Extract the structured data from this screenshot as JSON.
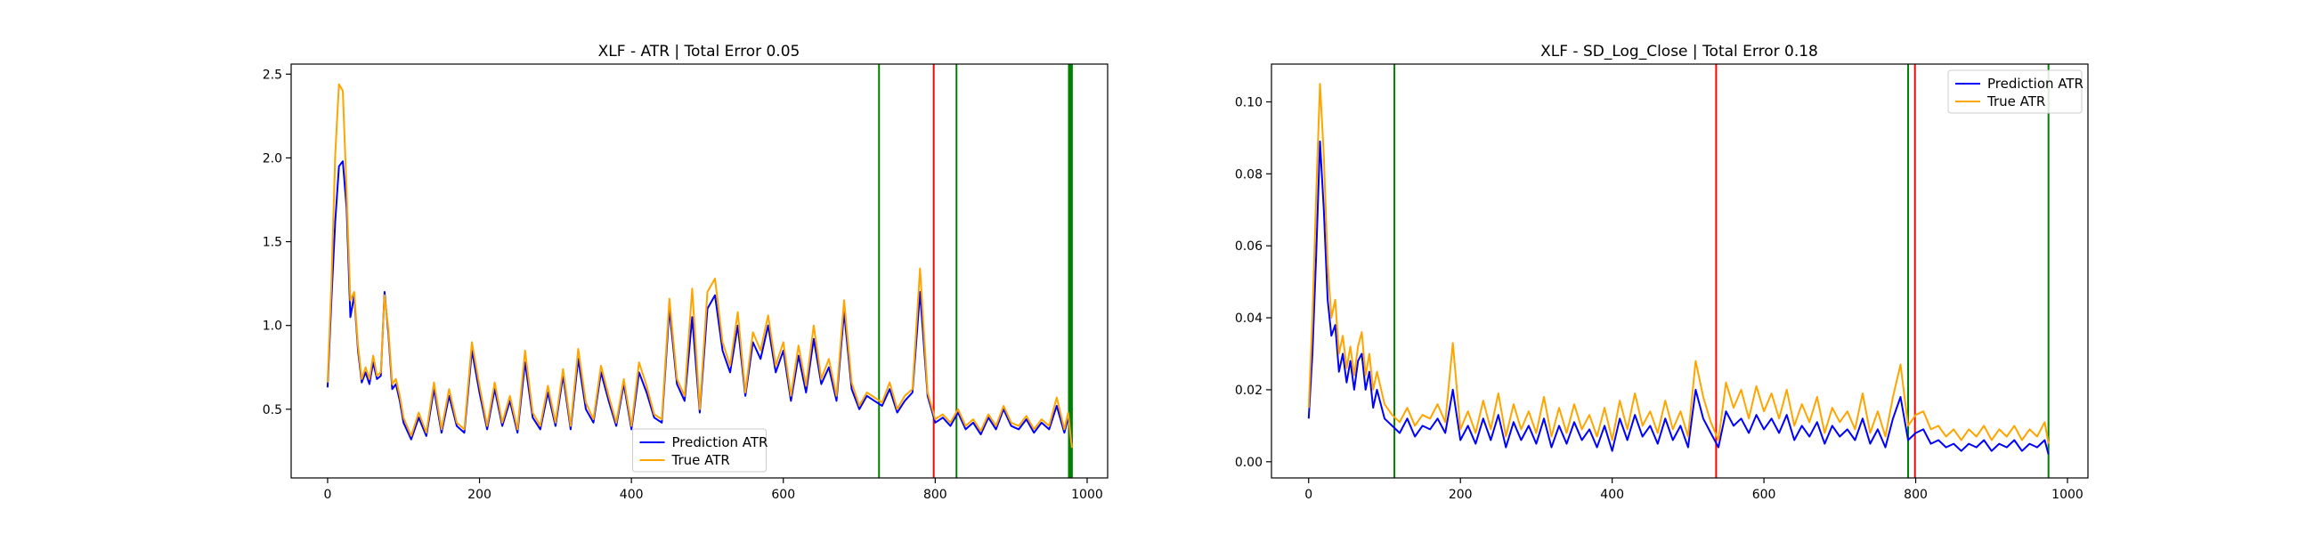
{
  "chart_data": [
    {
      "type": "line",
      "title": "XLF - ATR | Total Error 0.05",
      "xlabel": "",
      "ylabel": "",
      "xlim": [
        -48,
        1027
      ],
      "ylim": [
        0.09,
        2.56
      ],
      "xticks": [
        0,
        200,
        400,
        600,
        800,
        1000
      ],
      "xtick_labels": [
        "0",
        "200",
        "400",
        "600",
        "800",
        "1000"
      ],
      "yticks": [
        0.5,
        1.0,
        1.5,
        2.0,
        2.5
      ],
      "ytick_labels": [
        "0.5",
        "1.0",
        "1.5",
        "2.0",
        "2.5"
      ],
      "grid": false,
      "legend_position": "bottom-center",
      "vlines": [
        {
          "x": 726,
          "color": "#008000"
        },
        {
          "x": 798,
          "color": "#ff0000"
        },
        {
          "x": 828,
          "color": "#008000"
        },
        {
          "x": 976,
          "color": "#008000"
        },
        {
          "x": 978,
          "color": "#008000"
        },
        {
          "x": 980,
          "color": "#008000"
        }
      ],
      "series": [
        {
          "name": "Prediction ATR",
          "color": "#0000ff",
          "x": [
            0,
            5,
            10,
            15,
            20,
            25,
            30,
            35,
            40,
            45,
            50,
            55,
            60,
            65,
            70,
            75,
            80,
            85,
            90,
            95,
            100,
            110,
            120,
            130,
            140,
            150,
            160,
            170,
            180,
            190,
            200,
            210,
            220,
            230,
            240,
            250,
            260,
            270,
            280,
            290,
            300,
            310,
            320,
            330,
            340,
            350,
            360,
            370,
            380,
            390,
            400,
            410,
            420,
            430,
            440,
            450,
            460,
            470,
            480,
            490,
            500,
            510,
            520,
            530,
            540,
            550,
            560,
            570,
            580,
            590,
            600,
            610,
            620,
            630,
            640,
            650,
            660,
            670,
            680,
            690,
            700,
            710,
            720,
            730,
            740,
            750,
            760,
            770,
            780,
            790,
            800,
            810,
            820,
            830,
            840,
            850,
            860,
            870,
            880,
            890,
            900,
            910,
            920,
            930,
            940,
            950,
            960,
            970,
            975,
            980
          ],
          "y": [
            0.63,
            1.15,
            1.62,
            1.95,
            1.98,
            1.7,
            1.05,
            1.18,
            0.85,
            0.66,
            0.72,
            0.65,
            0.78,
            0.68,
            0.7,
            1.2,
            0.95,
            0.62,
            0.65,
            0.55,
            0.42,
            0.32,
            0.45,
            0.34,
            0.62,
            0.36,
            0.58,
            0.4,
            0.36,
            0.85,
            0.6,
            0.38,
            0.62,
            0.4,
            0.55,
            0.36,
            0.78,
            0.45,
            0.38,
            0.6,
            0.4,
            0.7,
            0.38,
            0.8,
            0.5,
            0.42,
            0.72,
            0.55,
            0.4,
            0.65,
            0.38,
            0.72,
            0.6,
            0.45,
            0.42,
            1.1,
            0.65,
            0.55,
            1.05,
            0.48,
            1.1,
            1.18,
            0.85,
            0.72,
            1.0,
            0.58,
            0.9,
            0.8,
            1.0,
            0.72,
            0.85,
            0.55,
            0.82,
            0.6,
            0.92,
            0.65,
            0.75,
            0.55,
            1.08,
            0.62,
            0.5,
            0.58,
            0.55,
            0.52,
            0.62,
            0.48,
            0.55,
            0.6,
            1.2,
            0.58,
            0.42,
            0.45,
            0.4,
            0.48,
            0.38,
            0.42,
            0.35,
            0.45,
            0.38,
            0.5,
            0.4,
            0.38,
            0.44,
            0.36,
            0.42,
            0.38,
            0.52,
            0.36,
            0.45,
            0.3
          ]
        },
        {
          "name": "True ATR",
          "color": "#ffa500",
          "x": [
            0,
            5,
            10,
            15,
            20,
            25,
            30,
            35,
            40,
            45,
            50,
            55,
            60,
            65,
            70,
            75,
            80,
            85,
            90,
            95,
            100,
            110,
            120,
            130,
            140,
            150,
            160,
            170,
            180,
            190,
            200,
            210,
            220,
            230,
            240,
            250,
            260,
            270,
            280,
            290,
            300,
            310,
            320,
            330,
            340,
            350,
            360,
            370,
            380,
            390,
            400,
            410,
            420,
            430,
            440,
            450,
            460,
            470,
            480,
            490,
            500,
            510,
            520,
            530,
            540,
            550,
            560,
            570,
            580,
            590,
            600,
            610,
            620,
            630,
            640,
            650,
            660,
            670,
            680,
            690,
            700,
            710,
            720,
            730,
            740,
            750,
            760,
            770,
            780,
            790,
            800,
            810,
            820,
            830,
            840,
            850,
            860,
            870,
            880,
            890,
            900,
            910,
            920,
            930,
            940,
            950,
            960,
            970,
            975,
            980
          ],
          "y": [
            0.66,
            1.25,
            2.02,
            2.44,
            2.4,
            1.8,
            1.15,
            1.2,
            0.88,
            0.68,
            0.75,
            0.68,
            0.82,
            0.7,
            0.72,
            1.18,
            0.98,
            0.65,
            0.68,
            0.58,
            0.45,
            0.34,
            0.48,
            0.36,
            0.66,
            0.38,
            0.62,
            0.42,
            0.38,
            0.9,
            0.64,
            0.4,
            0.66,
            0.42,
            0.58,
            0.38,
            0.85,
            0.48,
            0.4,
            0.64,
            0.42,
            0.74,
            0.4,
            0.86,
            0.54,
            0.44,
            0.76,
            0.58,
            0.42,
            0.68,
            0.4,
            0.78,
            0.64,
            0.47,
            0.44,
            1.16,
            0.68,
            0.58,
            1.22,
            0.5,
            1.2,
            1.28,
            0.9,
            0.76,
            1.08,
            0.6,
            0.96,
            0.85,
            1.06,
            0.76,
            0.9,
            0.58,
            0.88,
            0.64,
            1.0,
            0.68,
            0.8,
            0.58,
            1.15,
            0.66,
            0.52,
            0.6,
            0.57,
            0.54,
            0.66,
            0.5,
            0.58,
            0.62,
            1.34,
            0.6,
            0.44,
            0.47,
            0.42,
            0.5,
            0.4,
            0.44,
            0.37,
            0.47,
            0.4,
            0.52,
            0.42,
            0.4,
            0.46,
            0.38,
            0.44,
            0.4,
            0.57,
            0.38,
            0.48,
            0.27
          ]
        }
      ]
    },
    {
      "type": "line",
      "title": "XLF - SD_Log_Close | Total Error 0.18",
      "xlabel": "",
      "ylabel": "",
      "xlim": [
        -49,
        1027
      ],
      "ylim": [
        -0.0045,
        0.1105
      ],
      "xticks": [
        0,
        200,
        400,
        600,
        800,
        1000
      ],
      "xtick_labels": [
        "0",
        "200",
        "400",
        "600",
        "800",
        "1000"
      ],
      "yticks": [
        0.0,
        0.02,
        0.04,
        0.06,
        0.08,
        0.1
      ],
      "ytick_labels": [
        "0.00",
        "0.02",
        "0.04",
        "0.06",
        "0.08",
        "0.10"
      ],
      "grid": false,
      "legend_position": "top-right",
      "vlines": [
        {
          "x": 113,
          "color": "#008000"
        },
        {
          "x": 537,
          "color": "#ff0000"
        },
        {
          "x": 790,
          "color": "#008000"
        },
        {
          "x": 799,
          "color": "#ff0000"
        },
        {
          "x": 975,
          "color": "#008000"
        }
      ],
      "series": [
        {
          "name": "Prediction ATR",
          "color": "#0000ff",
          "x": [
            0,
            5,
            10,
            15,
            20,
            25,
            30,
            35,
            40,
            45,
            50,
            55,
            60,
            65,
            70,
            75,
            80,
            85,
            90,
            100,
            110,
            120,
            130,
            140,
            150,
            160,
            170,
            180,
            190,
            200,
            210,
            220,
            230,
            240,
            250,
            260,
            270,
            280,
            290,
            300,
            310,
            320,
            330,
            340,
            350,
            360,
            370,
            380,
            390,
            400,
            410,
            420,
            430,
            440,
            450,
            460,
            470,
            480,
            490,
            500,
            510,
            520,
            530,
            540,
            550,
            560,
            570,
            580,
            590,
            600,
            610,
            620,
            630,
            640,
            650,
            660,
            670,
            680,
            690,
            700,
            710,
            720,
            730,
            740,
            750,
            760,
            770,
            780,
            790,
            800,
            810,
            820,
            830,
            840,
            850,
            860,
            870,
            880,
            890,
            900,
            910,
            920,
            930,
            940,
            950,
            960,
            970,
            975
          ],
          "y": [
            0.012,
            0.03,
            0.058,
            0.089,
            0.07,
            0.045,
            0.035,
            0.038,
            0.025,
            0.03,
            0.022,
            0.028,
            0.02,
            0.028,
            0.03,
            0.02,
            0.025,
            0.015,
            0.02,
            0.012,
            0.01,
            0.008,
            0.012,
            0.007,
            0.01,
            0.009,
            0.012,
            0.008,
            0.02,
            0.006,
            0.01,
            0.005,
            0.012,
            0.006,
            0.013,
            0.004,
            0.011,
            0.006,
            0.01,
            0.005,
            0.012,
            0.004,
            0.01,
            0.005,
            0.011,
            0.006,
            0.009,
            0.004,
            0.01,
            0.003,
            0.012,
            0.006,
            0.013,
            0.007,
            0.01,
            0.005,
            0.012,
            0.006,
            0.01,
            0.004,
            0.02,
            0.012,
            0.008,
            0.004,
            0.014,
            0.01,
            0.012,
            0.008,
            0.013,
            0.009,
            0.012,
            0.008,
            0.013,
            0.006,
            0.01,
            0.007,
            0.011,
            0.005,
            0.01,
            0.007,
            0.009,
            0.006,
            0.012,
            0.005,
            0.009,
            0.004,
            0.012,
            0.018,
            0.006,
            0.008,
            0.009,
            0.005,
            0.006,
            0.004,
            0.005,
            0.003,
            0.005,
            0.004,
            0.006,
            0.003,
            0.005,
            0.004,
            0.006,
            0.003,
            0.005,
            0.004,
            0.006,
            0.002
          ]
        },
        {
          "name": "True ATR",
          "color": "#ffa500",
          "x": [
            0,
            5,
            10,
            15,
            20,
            25,
            30,
            35,
            40,
            45,
            50,
            55,
            60,
            65,
            70,
            75,
            80,
            85,
            90,
            100,
            110,
            120,
            130,
            140,
            150,
            160,
            170,
            180,
            190,
            200,
            210,
            220,
            230,
            240,
            250,
            260,
            270,
            280,
            290,
            300,
            310,
            320,
            330,
            340,
            350,
            360,
            370,
            380,
            390,
            400,
            410,
            420,
            430,
            440,
            450,
            460,
            470,
            480,
            490,
            500,
            510,
            520,
            530,
            540,
            550,
            560,
            570,
            580,
            590,
            600,
            610,
            620,
            630,
            640,
            650,
            660,
            670,
            680,
            690,
            700,
            710,
            720,
            730,
            740,
            750,
            760,
            770,
            780,
            790,
            800,
            810,
            820,
            830,
            840,
            850,
            860,
            870,
            880,
            890,
            900,
            910,
            920,
            930,
            940,
            950,
            960,
            970,
            975
          ],
          "y": [
            0.015,
            0.04,
            0.075,
            0.105,
            0.085,
            0.055,
            0.04,
            0.045,
            0.03,
            0.035,
            0.026,
            0.032,
            0.024,
            0.032,
            0.036,
            0.024,
            0.03,
            0.02,
            0.025,
            0.016,
            0.013,
            0.011,
            0.015,
            0.01,
            0.013,
            0.012,
            0.016,
            0.011,
            0.033,
            0.009,
            0.014,
            0.008,
            0.017,
            0.009,
            0.019,
            0.007,
            0.016,
            0.009,
            0.014,
            0.008,
            0.018,
            0.007,
            0.015,
            0.008,
            0.016,
            0.009,
            0.013,
            0.007,
            0.015,
            0.006,
            0.017,
            0.009,
            0.019,
            0.01,
            0.014,
            0.008,
            0.017,
            0.009,
            0.014,
            0.007,
            0.028,
            0.018,
            0.011,
            0.006,
            0.022,
            0.015,
            0.02,
            0.012,
            0.021,
            0.014,
            0.019,
            0.012,
            0.02,
            0.01,
            0.016,
            0.011,
            0.018,
            0.008,
            0.015,
            0.011,
            0.014,
            0.009,
            0.019,
            0.008,
            0.014,
            0.007,
            0.018,
            0.027,
            0.01,
            0.013,
            0.014,
            0.009,
            0.01,
            0.007,
            0.009,
            0.006,
            0.009,
            0.007,
            0.01,
            0.006,
            0.009,
            0.007,
            0.01,
            0.006,
            0.009,
            0.007,
            0.011,
            0.005
          ]
        }
      ]
    }
  ]
}
